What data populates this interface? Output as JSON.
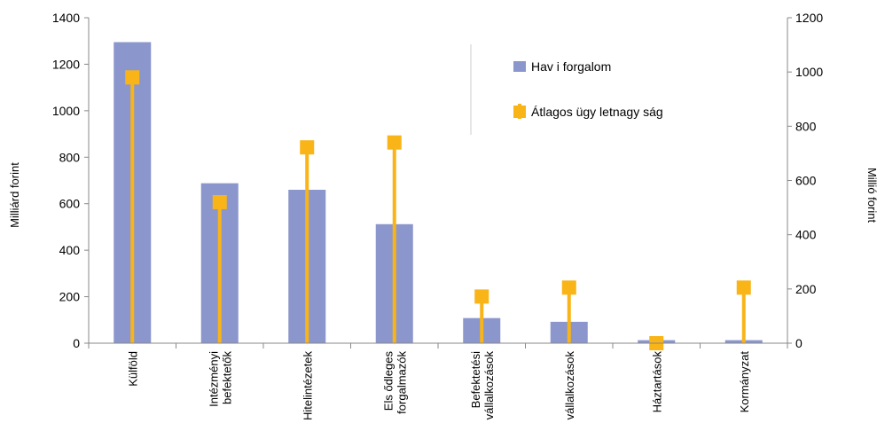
{
  "chart_data": {
    "type": "bar",
    "categories": [
      [
        "Külföld"
      ],
      [
        "Intézményi",
        "befektetők"
      ],
      [
        "Hitelintézetek"
      ],
      [
        "Els ődleges",
        "forgalmazók"
      ],
      [
        "Befektetési",
        "vállalkozások"
      ],
      [
        "vállalkozások"
      ],
      [
        "Háztartások"
      ],
      [
        "Kormányzat"
      ]
    ],
    "series": [
      {
        "name": "Hav i forgalom",
        "axis": "left",
        "render": "bar",
        "color": "#8b96cc",
        "values": [
          1295,
          688,
          660,
          512,
          108,
          92,
          13,
          13
        ]
      },
      {
        "name": "Átlagos ügy letnagy ság",
        "axis": "right",
        "render": "lollipop",
        "color": "#f9b418",
        "values": [
          980,
          520,
          722,
          740,
          172,
          205,
          0,
          205
        ]
      }
    ],
    "yaxis_left": {
      "label": "Milliárd forint",
      "min": 0,
      "max": 1400,
      "ticks": [
        "0",
        "200",
        "400",
        "600",
        "800",
        "1000",
        "1200",
        "1400"
      ]
    },
    "yaxis_right": {
      "label": "Millió forint",
      "min": 0,
      "max": 1200,
      "ticks": [
        "0",
        "200",
        "400",
        "600",
        "800",
        "1000",
        "1200"
      ]
    },
    "grid": false,
    "legend_position": "top-right"
  }
}
